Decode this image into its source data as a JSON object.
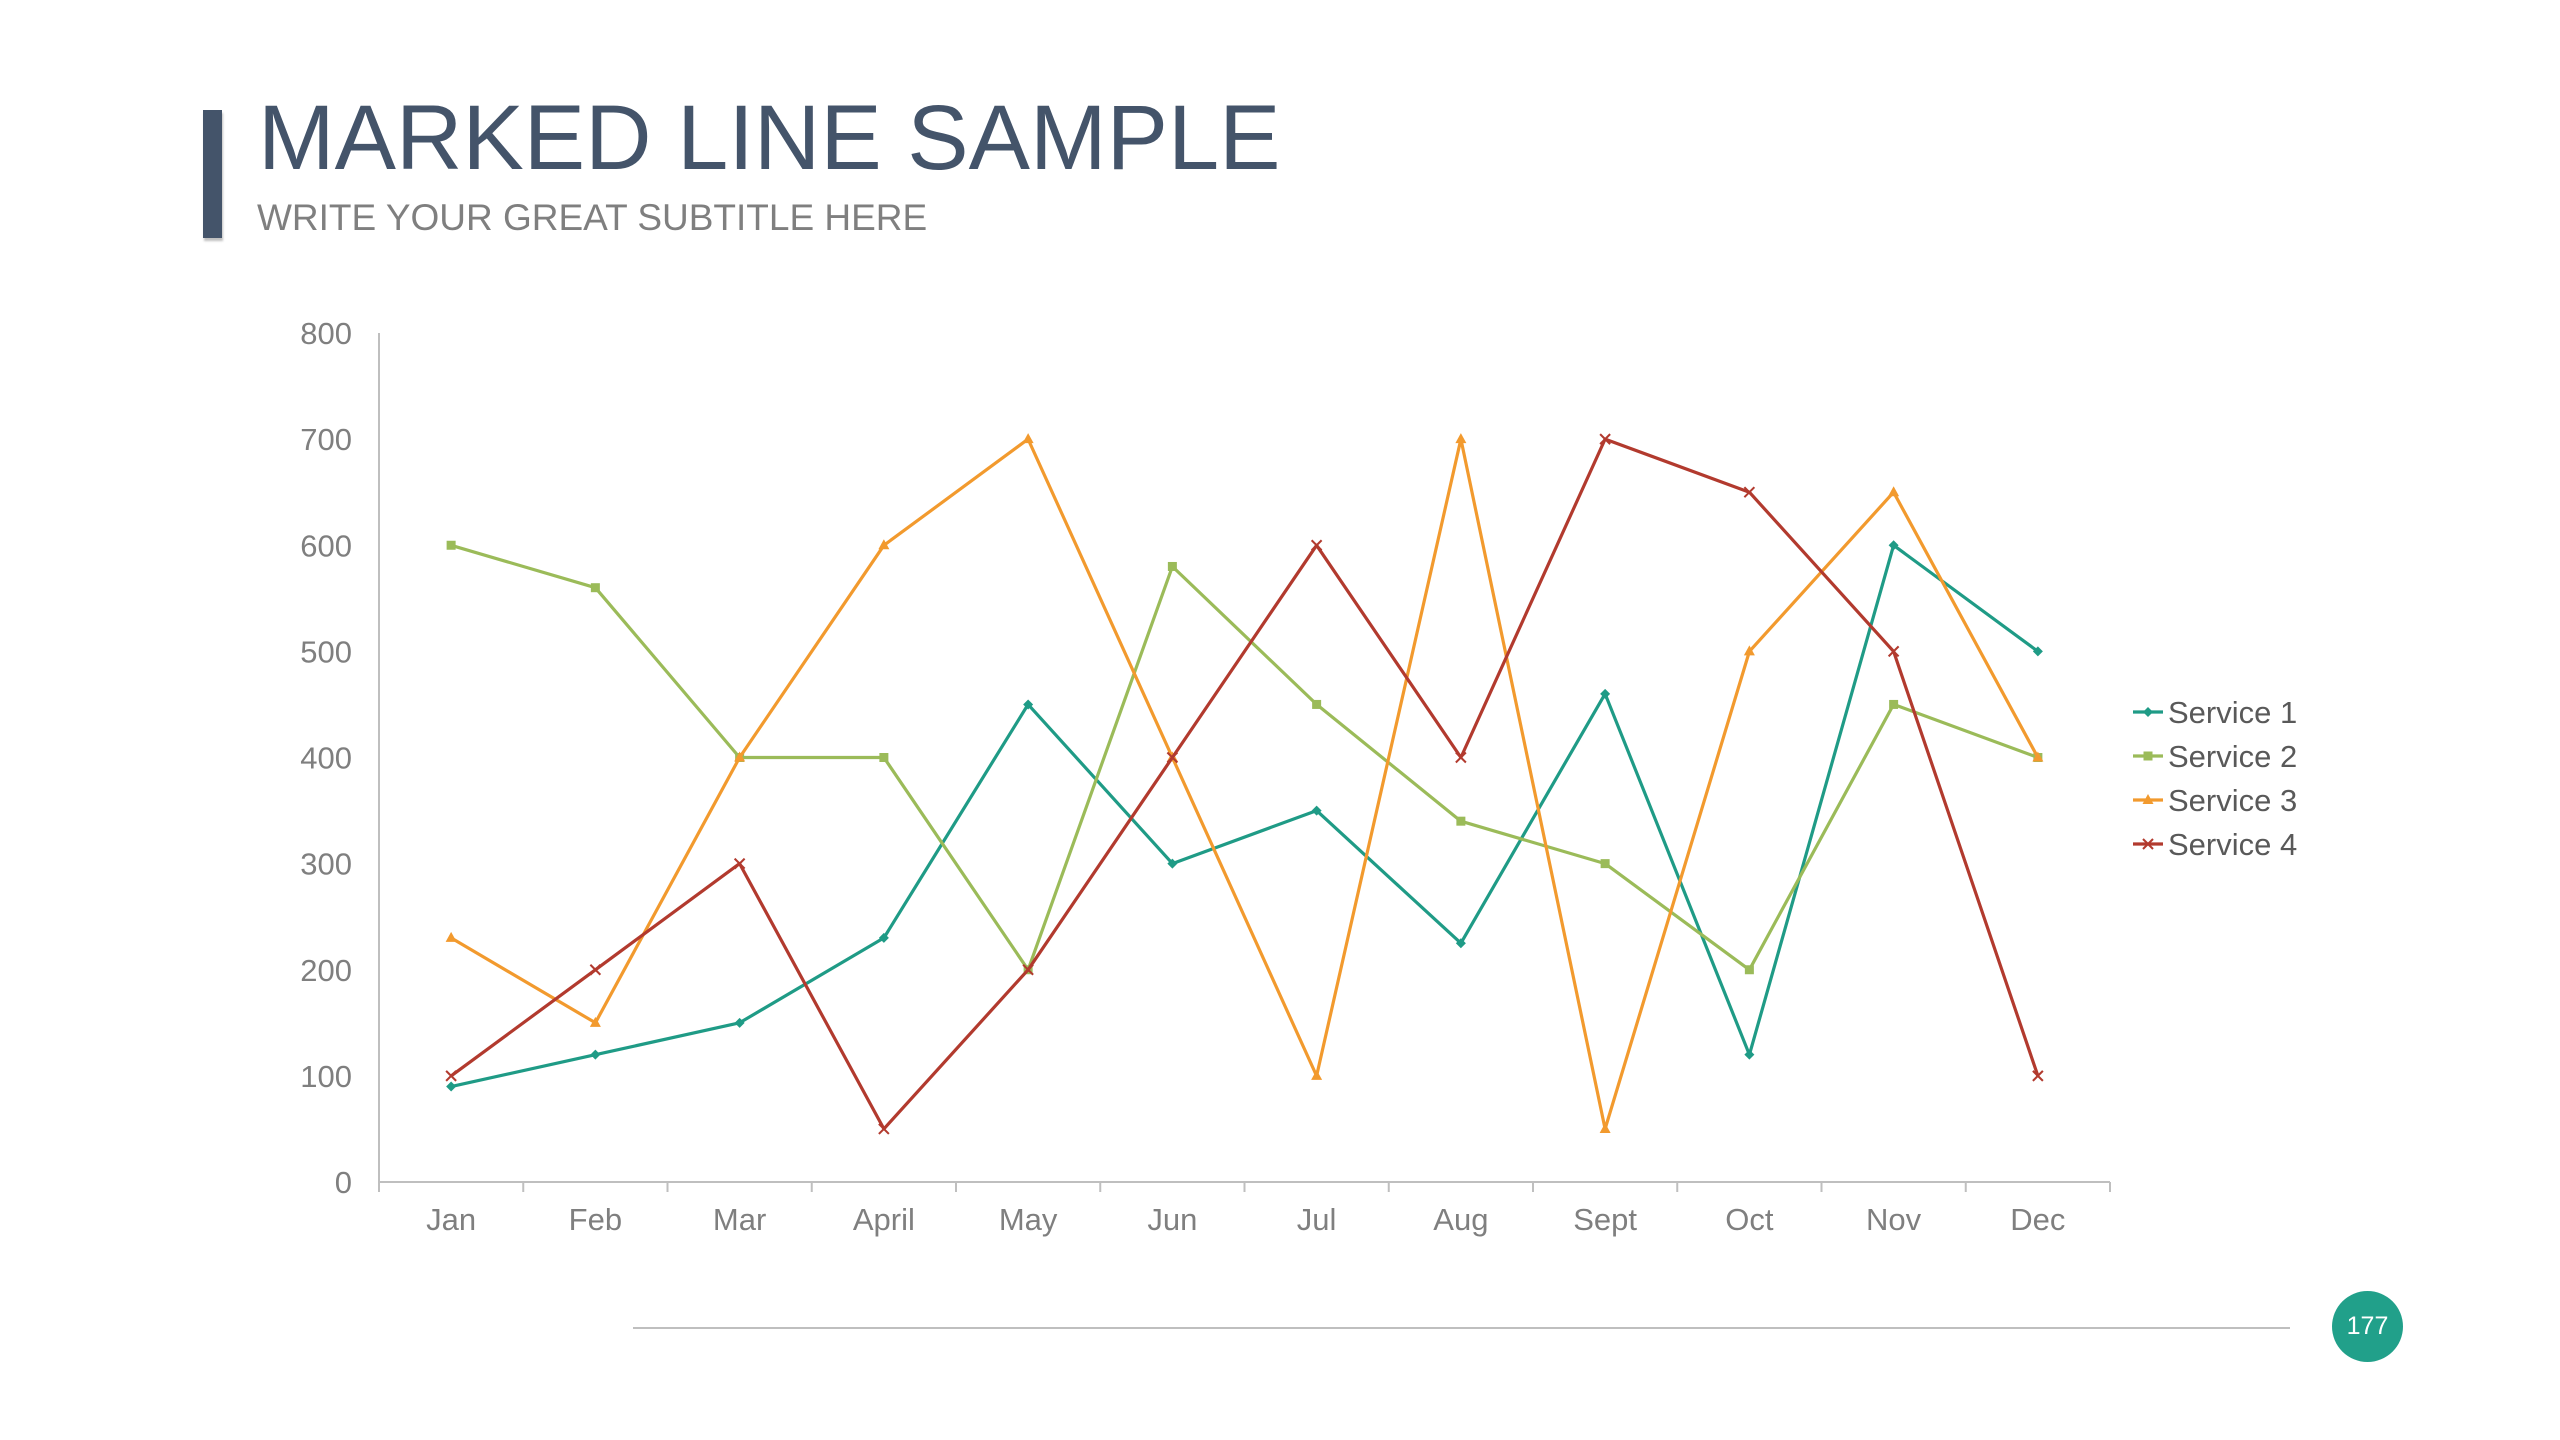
{
  "slide": {
    "title": "MARKED LINE SAMPLE",
    "subtitle": "WRITE YOUR GREAT SUBTITLE HERE",
    "page_number": "177",
    "accent_color": "#44546a",
    "badge_color": "#21a08a"
  },
  "chart_data": {
    "type": "line",
    "title": "",
    "xlabel": "",
    "ylabel": "",
    "categories": [
      "Jan",
      "Feb",
      "Mar",
      "April",
      "May",
      "Jun",
      "Jul",
      "Aug",
      "Sept",
      "Oct",
      "Nov",
      "Dec"
    ],
    "ylim": [
      0,
      800
    ],
    "yticks": [
      0,
      100,
      200,
      300,
      400,
      500,
      600,
      700,
      800
    ],
    "grid": false,
    "legend_position": "right",
    "series": [
      {
        "name": "Service 1",
        "color": "#1f9b86",
        "marker": "diamond",
        "values": [
          90,
          120,
          150,
          230,
          450,
          300,
          350,
          225,
          460,
          120,
          600,
          500
        ]
      },
      {
        "name": "Service 2",
        "color": "#9bbb59",
        "marker": "square",
        "values": [
          600,
          560,
          400,
          400,
          200,
          580,
          450,
          340,
          300,
          200,
          450,
          400
        ]
      },
      {
        "name": "Service 3",
        "color": "#f29a2e",
        "marker": "triangle",
        "values": [
          230,
          150,
          400,
          600,
          700,
          400,
          100,
          700,
          50,
          500,
          650,
          400
        ]
      },
      {
        "name": "Service 4",
        "color": "#b23a2e",
        "marker": "x",
        "values": [
          100,
          200,
          300,
          50,
          200,
          400,
          600,
          400,
          700,
          650,
          500,
          100
        ]
      }
    ]
  }
}
